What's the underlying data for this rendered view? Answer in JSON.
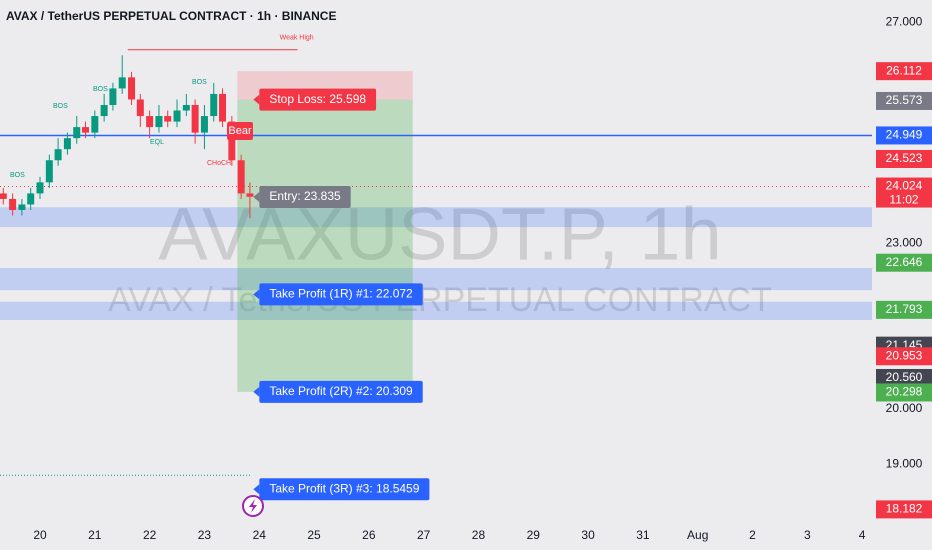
{
  "chart_data": {
    "type": "candlestick",
    "title": "AVAX / TetherUS PERPETUAL CONTRACT · 1h · BINANCE",
    "watermark": "AVAXUSDT.P, 1h",
    "watermark_subtitle": "AVAX / TetherUS PERPETUAL CONTRACT",
    "x": [
      19.33,
      19.5,
      19.67,
      19.83,
      20.0,
      20.17,
      20.33,
      20.5,
      20.67,
      20.83,
      21.0,
      21.17,
      21.33,
      21.5,
      21.67,
      21.83,
      22.0,
      22.17,
      22.33,
      22.5,
      22.67,
      22.83,
      23.0,
      23.17,
      23.33,
      23.5,
      23.67,
      23.83
    ],
    "open": [
      23.9,
      23.8,
      23.6,
      23.7,
      23.9,
      24.1,
      24.5,
      24.7,
      24.9,
      25.1,
      25.0,
      25.3,
      25.5,
      25.8,
      26.0,
      25.6,
      25.3,
      25.1,
      25.3,
      25.2,
      25.4,
      25.5,
      25.0,
      25.3,
      25.7,
      25.2,
      24.5,
      23.9
    ],
    "high": [
      24.0,
      23.9,
      23.8,
      24.0,
      24.2,
      24.6,
      24.9,
      25.0,
      25.3,
      25.2,
      25.4,
      25.7,
      25.9,
      26.4,
      26.1,
      25.7,
      25.4,
      25.5,
      25.4,
      25.6,
      25.7,
      25.6,
      25.5,
      25.9,
      25.8,
      25.3,
      24.6,
      24.1
    ],
    "low": [
      23.7,
      23.5,
      23.5,
      23.6,
      23.8,
      24.0,
      24.4,
      24.6,
      24.8,
      24.9,
      24.9,
      25.2,
      25.4,
      25.7,
      25.5,
      25.1,
      24.9,
      25.0,
      25.1,
      25.1,
      25.3,
      24.8,
      24.7,
      25.2,
      25.1,
      24.4,
      23.8,
      23.45
    ],
    "close": [
      23.8,
      23.6,
      23.7,
      23.9,
      24.1,
      24.5,
      24.7,
      24.9,
      25.1,
      25.0,
      25.3,
      25.5,
      25.8,
      26.0,
      25.6,
      25.3,
      25.1,
      25.3,
      25.2,
      25.4,
      25.5,
      25.0,
      25.3,
      25.7,
      25.2,
      24.5,
      23.9,
      23.84
    ],
    "up_color": "#089981",
    "down_color": "#f23645",
    "xlim": [
      19.27,
      35.18
    ],
    "xticks": [
      20,
      21,
      22,
      23,
      24,
      25,
      26,
      27,
      28,
      29,
      30,
      31,
      {
        "value": 32,
        "label": "Aug"
      },
      {
        "value": 33,
        "label": "2"
      },
      {
        "value": 34,
        "label": "3"
      },
      {
        "value": 35,
        "label": "4"
      }
    ],
    "ylim": [
      17.99,
      27.4
    ],
    "yticks": [
      {
        "value": 27,
        "label": "27.000"
      },
      {
        "value": 23,
        "label": "23.000"
      },
      {
        "value": 20,
        "label": "20.000"
      },
      {
        "value": 19,
        "label": "19.000"
      }
    ],
    "price_tags": [
      {
        "value": 26.112,
        "color": "#f23645"
      },
      {
        "value": 25.573,
        "color": "#787b86"
      },
      {
        "value": 24.949,
        "color": "#2962ff"
      },
      {
        "value": 24.523,
        "color": "#f23645"
      },
      {
        "value": 24.024,
        "color": "#f23645",
        "countdown": "11:02"
      },
      {
        "value": 22.646,
        "color": "#4caf50"
      },
      {
        "value": 21.793,
        "color": "#4caf50"
      },
      {
        "value": 21.145,
        "color": "#434651"
      },
      {
        "value": 20.953,
        "color": "#f23645"
      },
      {
        "value": 20.56,
        "label": "20.560",
        "color": "#434651"
      },
      {
        "value": 20.298,
        "color": "#4caf50"
      },
      {
        "value": 18.182,
        "color": "#f23645"
      }
    ],
    "resistance_line": {
      "value": 24.949,
      "color": "#2962ff"
    },
    "dotted_lines": [
      {
        "value": 24.024,
        "color": "#f23645"
      },
      {
        "value": 18.8,
        "color": "#089981"
      }
    ],
    "zones": [
      [
        23.29,
        23.65
      ],
      [
        22.15,
        22.55
      ],
      [
        21.61,
        21.94
      ]
    ],
    "zone_color": "#2962ff",
    "weak_high": {
      "value": 26.5,
      "label": "Weak High",
      "start": 21.6,
      "end": 24.7,
      "color": "#f23645"
    },
    "annotations": [
      {
        "text": "BOS",
        "color": "#089981"
      },
      {
        "text": "BOS",
        "color": "#089981"
      },
      {
        "text": "BOS",
        "color": "#089981"
      },
      {
        "text": "BOS",
        "color": "#089981"
      },
      {
        "text": "EQL",
        "color": "#089981"
      },
      {
        "text": "CHoCH",
        "color": "#f23645"
      },
      {
        "text": "Bear",
        "color": "#f23645"
      }
    ],
    "position_tool": {
      "start": 23.6,
      "end": 26.8,
      "risk_top": 26.112,
      "stop": 25.598,
      "entry": 23.835,
      "targets": [
        22.072,
        20.309,
        18.5459
      ],
      "stop_label": "Stop Loss: 25.598",
      "entry_label": "Entry: 23.835",
      "target_labels": [
        "Take Profit (1R) #1: 22.072",
        "Take Profit (2R) #2: 20.309",
        "Take Profit (3R) #3: 18.5459"
      ],
      "stop_color": "#f23645",
      "entry_color": "#787b86",
      "target_color": "#2962ff"
    }
  }
}
